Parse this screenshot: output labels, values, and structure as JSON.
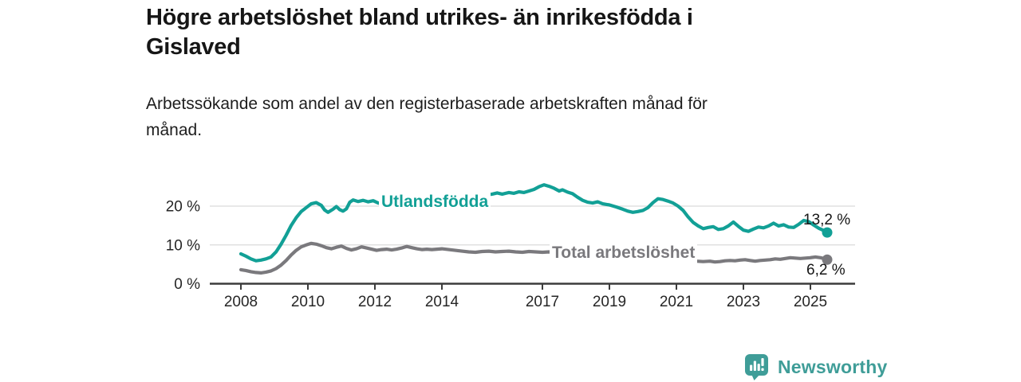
{
  "header": {
    "title_line1": "Högre arbetslöshet bland utrikes- än inrikesfödda i",
    "title_line2": "Gislaved",
    "subtitle_line1": "Arbetssökande som andel av den registerbaserade arbetskraften månad för",
    "subtitle_line2": "månad."
  },
  "footer": {
    "brand": "Newsworthy",
    "brand_color": "#3f9d98",
    "logo_icon": "bar-chart-speech-bubble-icon"
  },
  "chart_data": {
    "type": "line",
    "title": "Högre arbetslöshet bland utrikes- än inrikesfödda i Gislaved",
    "subtitle": "Arbetssökande som andel av den registerbaserade arbetskraften månad för månad.",
    "unit": "%",
    "grid": "horizontal",
    "legend": "inline-labels",
    "x_axis": {
      "ticks": [
        2008,
        2010,
        2012,
        2014,
        2017,
        2019,
        2021,
        2023,
        2025
      ],
      "range": [
        2007.1,
        2026.3
      ]
    },
    "y_axis": {
      "ticks": [
        0,
        10,
        20
      ],
      "tick_labels": [
        "0 %",
        "10 %",
        "20 %"
      ],
      "range": [
        0,
        27
      ]
    },
    "colors": {
      "utlandsfodda": "#12a096",
      "total": "#7a797d",
      "gridline": "#dadada",
      "axis": "#3c3c3c",
      "axis_text": "#262626"
    },
    "series": [
      {
        "name": "Utlandsfödda",
        "color": "#12a096",
        "end_value": 13.2,
        "end_label": "13,2 %",
        "points": [
          [
            2008.0,
            7.7
          ],
          [
            2008.15,
            7.1
          ],
          [
            2008.3,
            6.4
          ],
          [
            2008.45,
            5.9
          ],
          [
            2008.6,
            6.1
          ],
          [
            2008.75,
            6.4
          ],
          [
            2008.9,
            6.9
          ],
          [
            2009.05,
            8.2
          ],
          [
            2009.2,
            10.2
          ],
          [
            2009.35,
            12.5
          ],
          [
            2009.5,
            15.0
          ],
          [
            2009.65,
            17.0
          ],
          [
            2009.8,
            18.6
          ],
          [
            2009.95,
            19.6
          ],
          [
            2010.1,
            20.6
          ],
          [
            2010.25,
            20.9
          ],
          [
            2010.4,
            20.2
          ],
          [
            2010.5,
            19.0
          ],
          [
            2010.6,
            18.4
          ],
          [
            2010.75,
            19.2
          ],
          [
            2010.85,
            19.9
          ],
          [
            2010.95,
            19.1
          ],
          [
            2011.05,
            18.7
          ],
          [
            2011.15,
            19.3
          ],
          [
            2011.25,
            21.0
          ],
          [
            2011.35,
            21.6
          ],
          [
            2011.5,
            21.2
          ],
          [
            2011.65,
            21.5
          ],
          [
            2011.8,
            21.1
          ],
          [
            2011.95,
            21.4
          ],
          [
            2012.1,
            20.8
          ],
          [
            2012.25,
            20.5
          ],
          [
            2012.4,
            21.0
          ],
          [
            2012.6,
            21.1
          ],
          [
            2012.8,
            21.3
          ],
          [
            2013.0,
            21.4
          ],
          [
            2013.25,
            21.6
          ],
          [
            2013.5,
            21.7
          ],
          [
            2013.75,
            21.9
          ],
          [
            2014.0,
            22.0
          ],
          [
            2014.25,
            22.2
          ],
          [
            2014.5,
            22.3
          ],
          [
            2014.75,
            22.5
          ],
          [
            2015.0,
            22.6
          ],
          [
            2015.25,
            22.8
          ],
          [
            2015.5,
            23.1
          ],
          [
            2015.65,
            23.4
          ],
          [
            2015.8,
            23.1
          ],
          [
            2016.0,
            23.5
          ],
          [
            2016.15,
            23.3
          ],
          [
            2016.3,
            23.7
          ],
          [
            2016.45,
            23.5
          ],
          [
            2016.6,
            23.9
          ],
          [
            2016.75,
            24.3
          ],
          [
            2016.9,
            25.0
          ],
          [
            2017.05,
            25.5
          ],
          [
            2017.2,
            25.1
          ],
          [
            2017.35,
            24.6
          ],
          [
            2017.5,
            23.9
          ],
          [
            2017.6,
            24.2
          ],
          [
            2017.75,
            23.6
          ],
          [
            2017.9,
            23.2
          ],
          [
            2018.05,
            22.3
          ],
          [
            2018.2,
            21.5
          ],
          [
            2018.35,
            21.0
          ],
          [
            2018.5,
            20.8
          ],
          [
            2018.65,
            21.1
          ],
          [
            2018.8,
            20.6
          ],
          [
            2019.0,
            20.3
          ],
          [
            2019.2,
            19.8
          ],
          [
            2019.4,
            19.2
          ],
          [
            2019.55,
            18.7
          ],
          [
            2019.7,
            18.4
          ],
          [
            2019.85,
            18.6
          ],
          [
            2020.0,
            18.9
          ],
          [
            2020.15,
            19.6
          ],
          [
            2020.3,
            20.9
          ],
          [
            2020.45,
            21.9
          ],
          [
            2020.6,
            21.7
          ],
          [
            2020.75,
            21.3
          ],
          [
            2020.9,
            20.8
          ],
          [
            2021.05,
            20.0
          ],
          [
            2021.2,
            18.9
          ],
          [
            2021.35,
            17.2
          ],
          [
            2021.5,
            15.8
          ],
          [
            2021.65,
            14.9
          ],
          [
            2021.8,
            14.2
          ],
          [
            2021.95,
            14.5
          ],
          [
            2022.1,
            14.7
          ],
          [
            2022.25,
            14.0
          ],
          [
            2022.4,
            14.2
          ],
          [
            2022.55,
            14.9
          ],
          [
            2022.7,
            15.9
          ],
          [
            2022.85,
            14.8
          ],
          [
            2023.0,
            13.8
          ],
          [
            2023.15,
            13.5
          ],
          [
            2023.3,
            14.1
          ],
          [
            2023.45,
            14.6
          ],
          [
            2023.6,
            14.4
          ],
          [
            2023.75,
            14.9
          ],
          [
            2023.9,
            15.6
          ],
          [
            2024.05,
            14.9
          ],
          [
            2024.2,
            15.2
          ],
          [
            2024.35,
            14.6
          ],
          [
            2024.5,
            14.5
          ],
          [
            2024.65,
            15.3
          ],
          [
            2024.8,
            16.3
          ],
          [
            2024.95,
            16.0
          ],
          [
            2025.1,
            15.1
          ],
          [
            2025.25,
            14.3
          ],
          [
            2025.4,
            13.7
          ],
          [
            2025.5,
            13.2
          ]
        ]
      },
      {
        "name": "Total arbetslöshet",
        "color": "#7a797d",
        "end_value": 6.2,
        "end_label": "6,2 %",
        "points": [
          [
            2008.0,
            3.6
          ],
          [
            2008.15,
            3.4
          ],
          [
            2008.3,
            3.1
          ],
          [
            2008.45,
            2.9
          ],
          [
            2008.6,
            2.8
          ],
          [
            2008.75,
            3.0
          ],
          [
            2008.9,
            3.3
          ],
          [
            2009.05,
            3.9
          ],
          [
            2009.2,
            4.8
          ],
          [
            2009.35,
            6.0
          ],
          [
            2009.5,
            7.4
          ],
          [
            2009.65,
            8.6
          ],
          [
            2009.8,
            9.5
          ],
          [
            2009.95,
            10.0
          ],
          [
            2010.1,
            10.4
          ],
          [
            2010.25,
            10.2
          ],
          [
            2010.4,
            9.8
          ],
          [
            2010.55,
            9.3
          ],
          [
            2010.7,
            9.0
          ],
          [
            2010.85,
            9.4
          ],
          [
            2011.0,
            9.7
          ],
          [
            2011.15,
            9.1
          ],
          [
            2011.3,
            8.7
          ],
          [
            2011.45,
            9.0
          ],
          [
            2011.6,
            9.5
          ],
          [
            2011.75,
            9.2
          ],
          [
            2011.9,
            8.9
          ],
          [
            2012.05,
            8.6
          ],
          [
            2012.2,
            8.8
          ],
          [
            2012.35,
            8.9
          ],
          [
            2012.5,
            8.7
          ],
          [
            2012.65,
            8.9
          ],
          [
            2012.8,
            9.2
          ],
          [
            2012.95,
            9.6
          ],
          [
            2013.1,
            9.3
          ],
          [
            2013.25,
            9.0
          ],
          [
            2013.4,
            8.8
          ],
          [
            2013.55,
            8.9
          ],
          [
            2013.7,
            8.8
          ],
          [
            2013.85,
            8.9
          ],
          [
            2014.0,
            9.0
          ],
          [
            2014.2,
            8.8
          ],
          [
            2014.4,
            8.6
          ],
          [
            2014.6,
            8.4
          ],
          [
            2014.8,
            8.2
          ],
          [
            2015.0,
            8.1
          ],
          [
            2015.2,
            8.3
          ],
          [
            2015.4,
            8.4
          ],
          [
            2015.6,
            8.2
          ],
          [
            2015.8,
            8.3
          ],
          [
            2016.0,
            8.4
          ],
          [
            2016.2,
            8.2
          ],
          [
            2016.4,
            8.1
          ],
          [
            2016.6,
            8.3
          ],
          [
            2016.8,
            8.2
          ],
          [
            2017.0,
            8.1
          ],
          [
            2017.2,
            8.2
          ],
          [
            2017.4,
            8.0
          ],
          [
            2017.6,
            7.8
          ],
          [
            2017.8,
            7.7
          ],
          [
            2018.0,
            7.6
          ],
          [
            2018.5,
            7.3
          ],
          [
            2019.0,
            7.1
          ],
          [
            2019.5,
            7.0
          ],
          [
            2020.0,
            7.5
          ],
          [
            2020.5,
            7.7
          ],
          [
            2021.0,
            7.0
          ],
          [
            2021.3,
            6.4
          ],
          [
            2021.6,
            5.8
          ],
          [
            2021.8,
            5.7
          ],
          [
            2022.0,
            5.8
          ],
          [
            2022.15,
            5.6
          ],
          [
            2022.3,
            5.7
          ],
          [
            2022.45,
            5.9
          ],
          [
            2022.6,
            6.0
          ],
          [
            2022.75,
            5.9
          ],
          [
            2022.9,
            6.1
          ],
          [
            2023.05,
            6.2
          ],
          [
            2023.2,
            6.0
          ],
          [
            2023.35,
            5.8
          ],
          [
            2023.5,
            6.0
          ],
          [
            2023.65,
            6.1
          ],
          [
            2023.8,
            6.2
          ],
          [
            2023.95,
            6.4
          ],
          [
            2024.1,
            6.3
          ],
          [
            2024.25,
            6.5
          ],
          [
            2024.4,
            6.7
          ],
          [
            2024.55,
            6.6
          ],
          [
            2024.7,
            6.5
          ],
          [
            2024.85,
            6.6
          ],
          [
            2025.0,
            6.7
          ],
          [
            2025.15,
            6.9
          ],
          [
            2025.3,
            6.7
          ],
          [
            2025.4,
            6.5
          ],
          [
            2025.5,
            6.2
          ]
        ]
      }
    ]
  }
}
